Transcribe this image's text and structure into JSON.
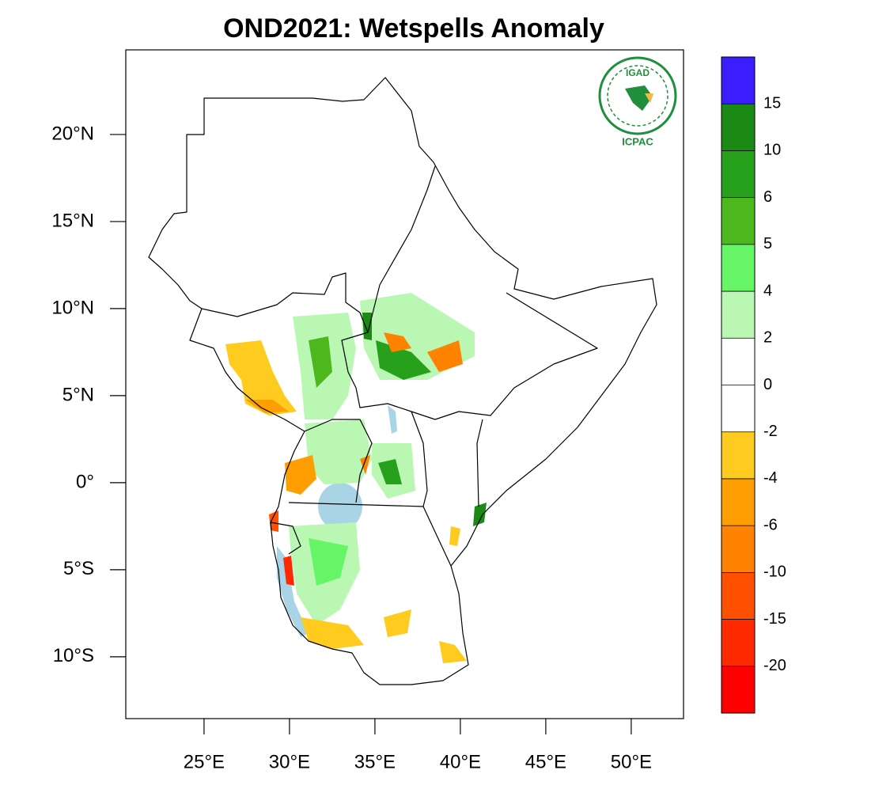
{
  "title": "OND2021: Wetspells Anomaly",
  "map": {
    "xlim": [
      20.42,
      53.06
    ],
    "ylim": [
      -13.55,
      24.86
    ],
    "xticks": [
      {
        "value": 25,
        "label": "25°E"
      },
      {
        "value": 30,
        "label": "30°E"
      },
      {
        "value": 35,
        "label": "35°E"
      },
      {
        "value": 40,
        "label": "40°E"
      },
      {
        "value": 45,
        "label": "45°E"
      },
      {
        "value": 50,
        "label": "50°E"
      }
    ],
    "yticks": [
      {
        "value": 20,
        "label": "20°N"
      },
      {
        "value": 15,
        "label": "15°N"
      },
      {
        "value": 10,
        "label": "10°N"
      },
      {
        "value": 5,
        "label": "5°N"
      },
      {
        "value": 0,
        "label": "0°"
      },
      {
        "value": -5,
        "label": "5°S"
      },
      {
        "value": -10,
        "label": "10°S"
      }
    ]
  },
  "colorbar": {
    "levels": [
      15,
      10,
      6,
      5,
      4,
      2,
      0,
      -2,
      -4,
      -6,
      -10,
      -15,
      -20
    ],
    "colors": [
      "#3a1eff",
      "#1a8a14",
      "#27a01c",
      "#4cb81e",
      "#66f566",
      "#b9f7b3",
      "#ffffff",
      "#ffffff",
      "#ffcb1e",
      "#ff9e00",
      "#ff8200",
      "#ff5000",
      "#ff2a00",
      "#ff0000"
    ]
  },
  "logo": {
    "name": "IGAD",
    "org": "ICPAC"
  }
}
